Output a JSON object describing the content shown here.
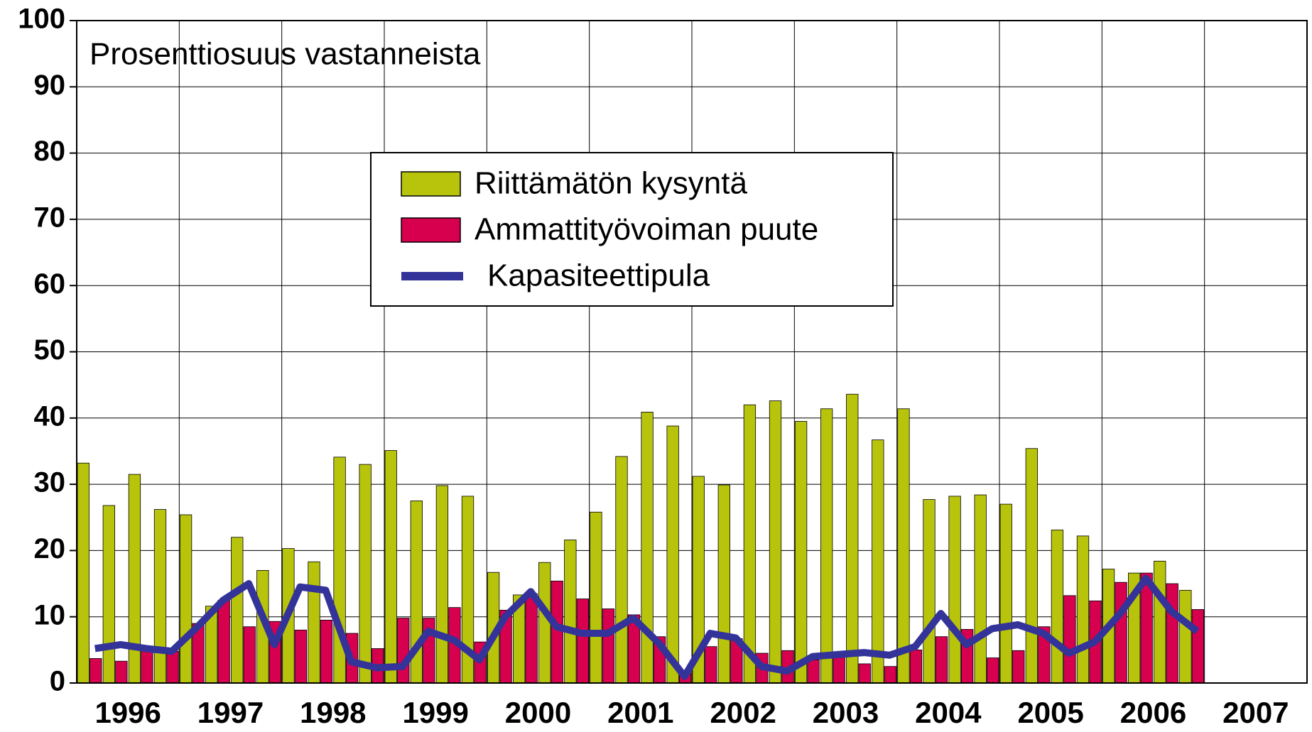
{
  "chart_data": {
    "type": "bar",
    "subtitle": "Prosenttiosuus vastanneista",
    "xticks": [
      "1996",
      "1997",
      "1998",
      "1999",
      "2000",
      "2001",
      "2002",
      "2003",
      "2004",
      "2005",
      "2006",
      "2007"
    ],
    "ylim": [
      0,
      100
    ],
    "yticks": [
      0,
      10,
      20,
      30,
      40,
      50,
      60,
      70,
      80,
      90,
      100
    ],
    "grid": true,
    "series": [
      {
        "name": "Riittämätön kysyntä",
        "type": "bar",
        "color": "#b8c40c",
        "values": [
          33.2,
          26.8,
          31.5,
          26.2,
          25.4,
          11.6,
          22,
          17,
          20.3,
          18.3,
          34.1,
          33,
          35.1,
          27.5,
          29.8,
          28.2,
          16.7,
          13.3,
          18.2,
          21.6,
          25.8,
          34.2,
          40.9,
          38.8,
          31.2,
          29.9,
          42,
          42.6,
          39.5,
          41.4,
          43.6,
          36.7,
          41.4,
          27.7,
          28.2,
          28.4,
          27,
          35.4,
          23.1,
          22.2,
          17.2,
          16.6,
          18.4,
          14
        ]
      },
      {
        "name": "Ammattityövoiman puute",
        "type": "bar",
        "color": "#d6004f",
        "values": [
          3.7,
          3.3,
          5,
          4.8,
          9,
          12.5,
          8.5,
          9.3,
          8,
          9.5,
          7.5,
          5.2,
          9.8,
          9.8,
          11.4,
          6.2,
          11,
          13.5,
          15.4,
          12.7,
          11.2,
          10.3,
          7,
          1.5,
          5.5,
          6.7,
          4.5,
          4.9,
          3.5,
          4.5,
          2.9,
          2.5,
          5,
          7,
          8.1,
          3.8,
          4.9,
          8.5,
          13.2,
          12.4,
          15.2,
          16.6,
          15,
          11.1
        ]
      },
      {
        "name": "Kapasiteettipula",
        "type": "line",
        "color": "#333399",
        "values": [
          5.2,
          5.8,
          5.2,
          4.8,
          8.5,
          12.5,
          15,
          5.8,
          14.5,
          14,
          3.2,
          2.3,
          2.5,
          7.8,
          6.5,
          3.5,
          10,
          13.8,
          8.5,
          7.5,
          7.5,
          9.8,
          6,
          1,
          7.5,
          6.8,
          2.5,
          1.8,
          4,
          4.3,
          4.6,
          4.2,
          5.5,
          10.5,
          5.8,
          8.2,
          8.8,
          7.5,
          4.5,
          6.2,
          10.5,
          15.8,
          10.8,
          7.8
        ]
      }
    ]
  }
}
